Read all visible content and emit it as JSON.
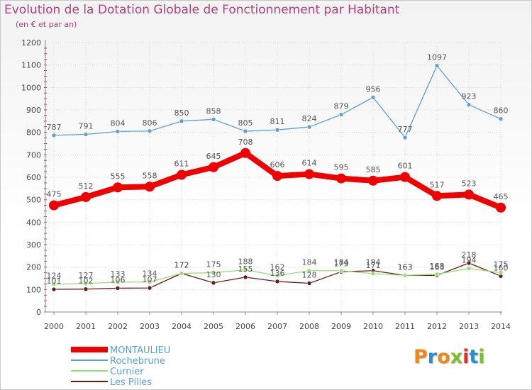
{
  "title": "Evolution de la Dotation Globale de Fonctionnement par Habitant",
  "subtitle": "(en € et par an)",
  "logo": {
    "text": "Proxiti",
    "colors": [
      "#e98a1a",
      "#2b8fd6",
      "#e98a1a",
      "#7cbf2f",
      "#d9322f",
      "#2b8fd6",
      "#7cbf2f"
    ]
  },
  "chart_data": {
    "type": "line",
    "x": [
      "2000",
      "2001",
      "2002",
      "2003",
      "2004",
      "2005",
      "2006",
      "2007",
      "2008",
      "2009",
      "2010",
      "2011",
      "2012",
      "2013",
      "2014"
    ],
    "ylim": [
      0,
      1200
    ],
    "yticks": [
      0,
      100,
      200,
      300,
      400,
      500,
      600,
      700,
      800,
      900,
      1000,
      1100,
      1200
    ],
    "grid": true,
    "legend": "bottom-left",
    "series": [
      {
        "name": "MONTAULIEU",
        "color": "#ee0000",
        "values": [
          475,
          512,
          555,
          558,
          611,
          645,
          708,
          606,
          614,
          595,
          585,
          601,
          517,
          523,
          465
        ]
      },
      {
        "name": "Rochebrune",
        "color": "#5b9fd4",
        "values": [
          787,
          791,
          804,
          806,
          850,
          858,
          805,
          811,
          824,
          879,
          956,
          777,
          1097,
          923,
          860
        ]
      },
      {
        "name": "Curnier",
        "color": "#99dd77",
        "values": [
          124,
          127,
          133,
          134,
          172,
          175,
          188,
          162,
          184,
          184,
          171,
          163,
          168,
          194,
          175
        ]
      },
      {
        "name": "Les Pilles",
        "color": "#6b1a1a",
        "values": [
          101,
          102,
          106,
          107,
          172,
          130,
          155,
          136,
          128,
          179,
          184,
          163,
          163,
          218,
          160
        ]
      }
    ]
  }
}
